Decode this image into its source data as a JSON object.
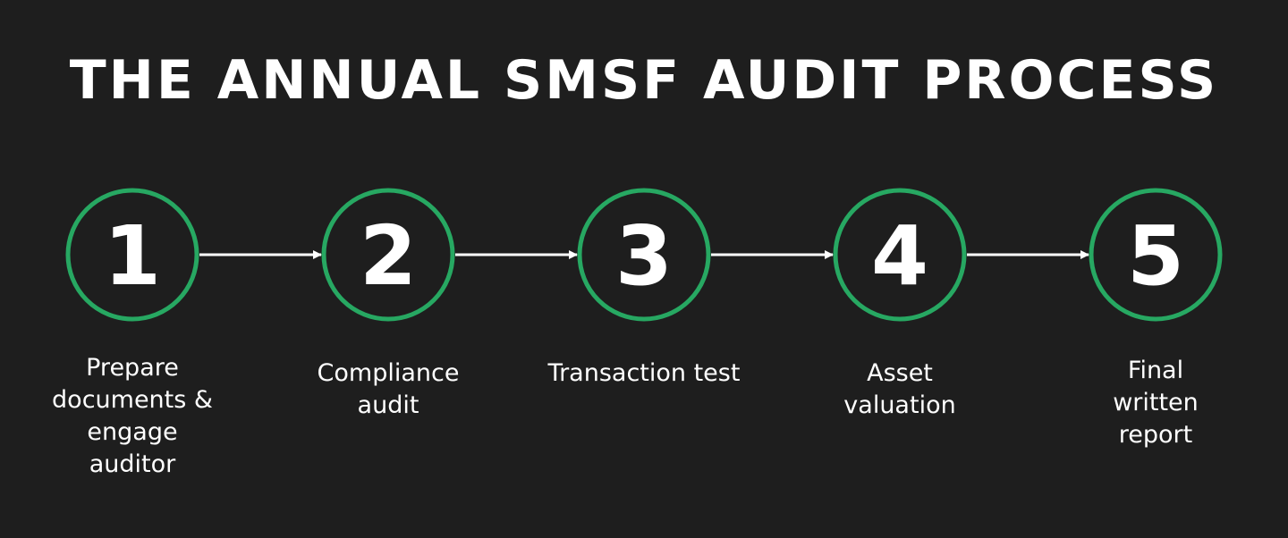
{
  "title": "THE ANNUAL SMSF AUDIT PROCESS",
  "colors": {
    "background": "#1e1e1e",
    "circle_stroke": "#27a862",
    "text": "#ffffff",
    "arrow": "#ffffff"
  },
  "steps": [
    {
      "number": "1",
      "label": "Prepare documents & engage auditor"
    },
    {
      "number": "2",
      "label": "Compliance audit"
    },
    {
      "number": "3",
      "label": "Transaction test"
    },
    {
      "number": "4",
      "label": "Asset valuation"
    },
    {
      "number": "5",
      "label": "Final written report"
    }
  ]
}
